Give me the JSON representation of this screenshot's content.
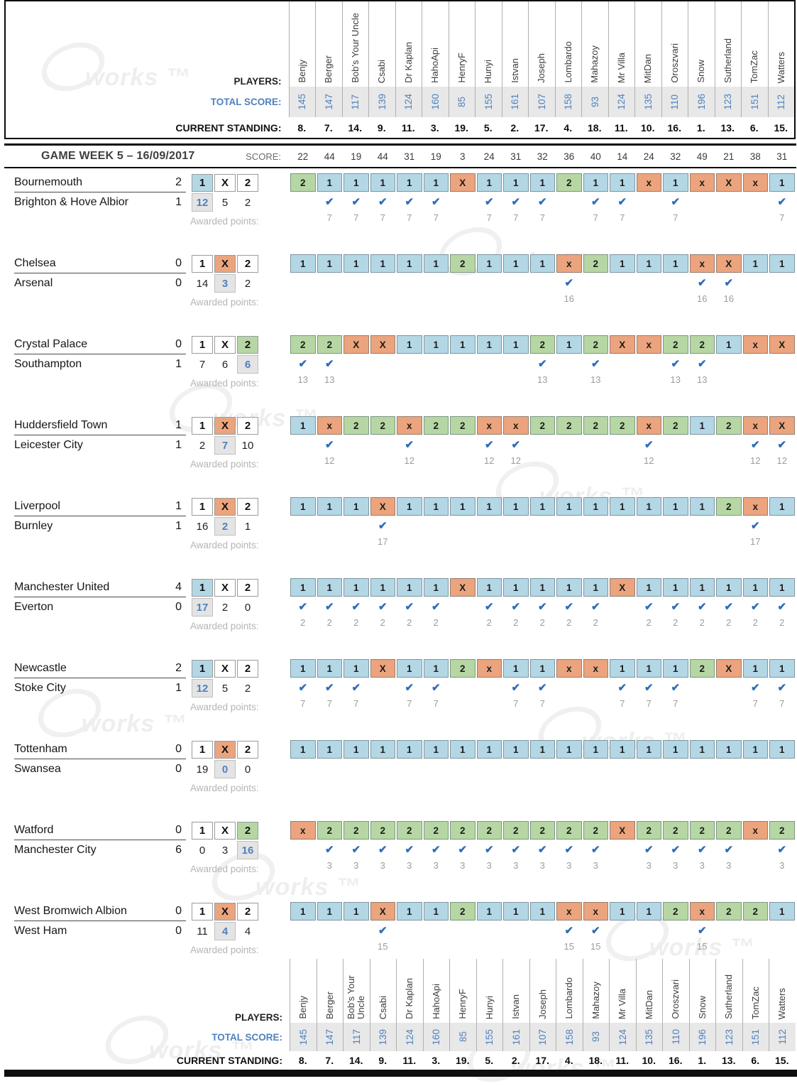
{
  "labels": {
    "players": "PLAYERS:",
    "total_score": "TOTAL SCORE:",
    "current_standing": "CURRENT STANDING:",
    "awarded_points": "Awarded points:"
  },
  "players": [
    "Benjy",
    "Berger",
    "Bob's Your Uncle",
    "Csabi",
    "Dr Kaplan",
    "HahoApi",
    "HenryF",
    "Hunyi",
    "Istvan",
    "Joseph",
    "Lombardo",
    "Mahazoy",
    "Mr Villa",
    "MitDan",
    "Oroszvari",
    "Snow",
    "Sutherland",
    "TomZac",
    "Watters"
  ],
  "total_scores": [
    "145",
    "147",
    "117",
    "139",
    "124",
    "160",
    "85",
    "155",
    "161",
    "107",
    "158",
    "93",
    "124",
    "135",
    "110",
    "196",
    "123",
    "151",
    "112"
  ],
  "standings": [
    "8.",
    "7.",
    "14.",
    "9.",
    "11.",
    "3.",
    "19.",
    "5.",
    "2.",
    "17.",
    "4.",
    "18.",
    "11.",
    "10.",
    "16.",
    "1.",
    "13.",
    "6.",
    "15."
  ],
  "gameweek": {
    "title": "GAME WEEK 5 – 16/09/2017",
    "score_label": "SCORE:",
    "scores": [
      "22",
      "44",
      "19",
      "44",
      "31",
      "19",
      "3",
      "24",
      "31",
      "32",
      "36",
      "40",
      "14",
      "24",
      "32",
      "49",
      "21",
      "38",
      "31"
    ]
  },
  "outcome_labels": [
    "1",
    "X",
    "2"
  ],
  "watermark": {
    "text": "works ™"
  },
  "colors": {
    "cell_blue": "#b4d7e6",
    "cell_green": "#b6d7a4",
    "cell_orange": "#eba47d",
    "check_blue": "#2e6db6",
    "score_blue": "#4f81bd",
    "band_gray": "#e8e8e8"
  },
  "matches": [
    {
      "home": "Bournemouth",
      "home_score": "2",
      "away": "Brighton & Hove Albior",
      "away_score": "1",
      "result": "1",
      "odds": [
        "12",
        "5",
        "2"
      ],
      "points": "7",
      "predictions": [
        "2",
        "1",
        "1",
        "1",
        "1",
        "1",
        "X",
        "1",
        "1",
        "1",
        "2",
        "1",
        "1",
        "x",
        "1",
        "x",
        "X",
        "x",
        "1"
      ]
    },
    {
      "home": "Chelsea",
      "home_score": "0",
      "away": "Arsenal",
      "away_score": "0",
      "result": "X",
      "odds": [
        "14",
        "3",
        "2"
      ],
      "points": "16",
      "predictions": [
        "1",
        "1",
        "1",
        "1",
        "1",
        "1",
        "2",
        "1",
        "1",
        "1",
        "x",
        "2",
        "1",
        "1",
        "1",
        "x",
        "X",
        "1",
        "1"
      ]
    },
    {
      "home": "Crystal Palace",
      "home_score": "0",
      "away": "Southampton",
      "away_score": "1",
      "result": "2",
      "odds": [
        "7",
        "6",
        "6"
      ],
      "points": "13",
      "predictions": [
        "2",
        "2",
        "X",
        "X",
        "1",
        "1",
        "1",
        "1",
        "1",
        "2",
        "1",
        "2",
        "X",
        "x",
        "2",
        "2",
        "1",
        "x",
        "X"
      ]
    },
    {
      "home": "Huddersfield Town",
      "home_score": "1",
      "away": "Leicester City",
      "away_score": "1",
      "result": "X",
      "odds": [
        "2",
        "7",
        "10"
      ],
      "points": "12",
      "predictions": [
        "1",
        "x",
        "2",
        "2",
        "x",
        "2",
        "2",
        "x",
        "x",
        "2",
        "2",
        "2",
        "2",
        "x",
        "2",
        "1",
        "2",
        "x",
        "X"
      ]
    },
    {
      "home": "Liverpool",
      "home_score": "1",
      "away": "Burnley",
      "away_score": "1",
      "result": "X",
      "odds": [
        "16",
        "2",
        "1"
      ],
      "points": "17",
      "predictions": [
        "1",
        "1",
        "1",
        "X",
        "1",
        "1",
        "1",
        "1",
        "1",
        "1",
        "1",
        "1",
        "1",
        "1",
        "1",
        "1",
        "2",
        "x",
        "1"
      ]
    },
    {
      "home": "Manchester United",
      "home_score": "4",
      "away": "Everton",
      "away_score": "0",
      "result": "1",
      "odds": [
        "17",
        "2",
        "0"
      ],
      "points": "2",
      "predictions": [
        "1",
        "1",
        "1",
        "1",
        "1",
        "1",
        "X",
        "1",
        "1",
        "1",
        "1",
        "1",
        "X",
        "1",
        "1",
        "1",
        "1",
        "1",
        "1"
      ]
    },
    {
      "home": "Newcastle",
      "home_score": "2",
      "away": "Stoke City",
      "away_score": "1",
      "result": "1",
      "odds": [
        "12",
        "5",
        "2"
      ],
      "points": "7",
      "predictions": [
        "1",
        "1",
        "1",
        "X",
        "1",
        "1",
        "2",
        "x",
        "1",
        "1",
        "x",
        "x",
        "1",
        "1",
        "1",
        "2",
        "X",
        "1",
        "1"
      ]
    },
    {
      "home": "Tottenham",
      "home_score": "0",
      "away": "Swansea",
      "away_score": "0",
      "result": "X",
      "odds": [
        "19",
        "0",
        "0"
      ],
      "points": "",
      "predictions": [
        "1",
        "1",
        "1",
        "1",
        "1",
        "1",
        "1",
        "1",
        "1",
        "1",
        "1",
        "1",
        "1",
        "1",
        "1",
        "1",
        "1",
        "1",
        "1"
      ]
    },
    {
      "home": "Watford",
      "home_score": "0",
      "away": "Manchester City",
      "away_score": "6",
      "result": "2",
      "odds": [
        "0",
        "3",
        "16"
      ],
      "points": "3",
      "predictions": [
        "x",
        "2",
        "2",
        "2",
        "2",
        "2",
        "2",
        "2",
        "2",
        "2",
        "2",
        "2",
        "X",
        "2",
        "2",
        "2",
        "2",
        "x",
        "2"
      ]
    },
    {
      "home": "West Bromwich Albion",
      "home_score": "0",
      "away": "West Ham",
      "away_score": "0",
      "result": "X",
      "odds": [
        "11",
        "4",
        "4"
      ],
      "points": "15",
      "predictions": [
        "1",
        "1",
        "1",
        "X",
        "1",
        "1",
        "2",
        "1",
        "1",
        "1",
        "x",
        "x",
        "1",
        "1",
        "2",
        "x",
        "2",
        "2",
        "1"
      ]
    }
  ]
}
